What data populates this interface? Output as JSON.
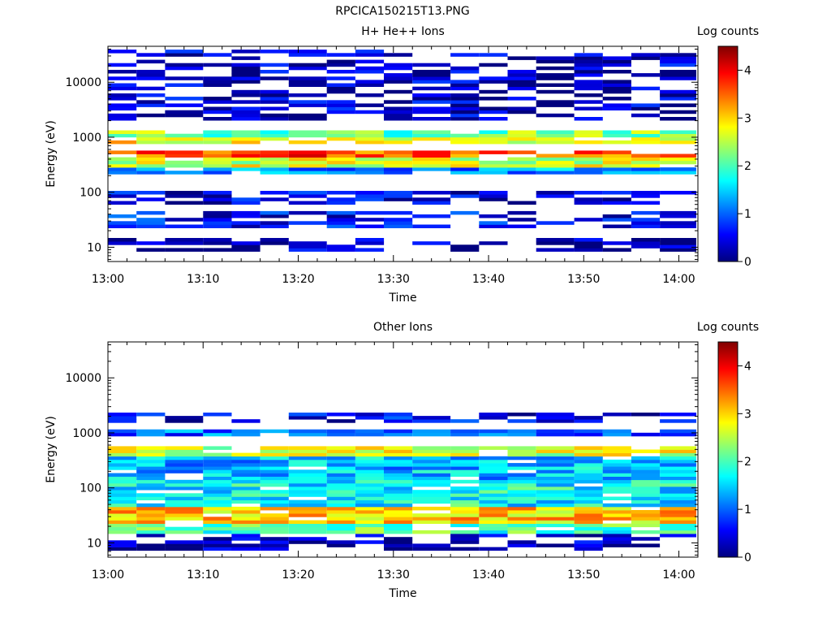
{
  "figure_title": "RPCICA150215T13.PNG",
  "colormap": [
    "#00007f",
    "#0000ff",
    "#007fff",
    "#00ffff",
    "#7fff7f",
    "#ffff00",
    "#ff7f00",
    "#ff0000",
    "#7f0000"
  ],
  "chart_data": [
    {
      "type": "heatmap",
      "title": "H+ He++ Ions",
      "xlabel": "Time",
      "ylabel": "Energy (eV)",
      "yscale": "log",
      "ylim": [
        5.5,
        45000
      ],
      "yticks": [
        10,
        100,
        1000,
        10000
      ],
      "ytick_labels": [
        "10",
        "100",
        "1000",
        "10000"
      ],
      "xlim": [
        "13:00",
        "14:02"
      ],
      "xticks": [
        "13:00",
        "13:10",
        "13:20",
        "13:30",
        "13:40",
        "13:50",
        "14:00"
      ],
      "time_bins": [
        "13:00",
        "13:03",
        "13:06",
        "13:10",
        "13:13",
        "13:16",
        "13:19",
        "13:23",
        "13:26",
        "13:29",
        "13:32",
        "13:36",
        "13:39",
        "13:42",
        "13:45",
        "13:49",
        "13:52",
        "13:55",
        "13:58"
      ],
      "colorbar": {
        "label": "Log counts",
        "range": [
          0,
          4.5
        ],
        "ticks": [
          0,
          1,
          2,
          3,
          4
        ],
        "tick_labels": [
          "0",
          "1",
          "2",
          "3",
          "4"
        ]
      },
      "legend": "right",
      "band_intensity": [
        {
          "energy_range": [
            9,
            15
          ],
          "value": 0.2
        },
        {
          "energy_range": [
            22,
            45
          ],
          "value": 0.6
        },
        {
          "energy_range": [
            60,
            100
          ],
          "value": 0.4
        },
        {
          "energy_range": [
            200,
            300
          ],
          "value": 1.2
        },
        {
          "energy_range": [
            300,
            450
          ],
          "value": 2.6
        },
        {
          "energy_range": [
            450,
            600
          ],
          "value": 3.6
        },
        {
          "energy_range": [
            800,
            1000
          ],
          "value": 2.8
        },
        {
          "energy_range": [
            1000,
            1300
          ],
          "value": 2.2
        },
        {
          "energy_range": [
            2000,
            40000
          ],
          "value": 0.3
        }
      ]
    },
    {
      "type": "heatmap",
      "title": "Other Ions",
      "xlabel": "Time",
      "ylabel": "Energy (eV)",
      "yscale": "log",
      "ylim": [
        5.5,
        45000
      ],
      "yticks": [
        10,
        100,
        1000,
        10000
      ],
      "ytick_labels": [
        "10",
        "100",
        "1000",
        "10000"
      ],
      "xlim": [
        "13:00",
        "14:02"
      ],
      "xticks": [
        "13:00",
        "13:10",
        "13:20",
        "13:30",
        "13:40",
        "13:50",
        "14:00"
      ],
      "time_bins": [
        "13:00",
        "13:03",
        "13:06",
        "13:10",
        "13:13",
        "13:16",
        "13:19",
        "13:23",
        "13:26",
        "13:29",
        "13:32",
        "13:36",
        "13:39",
        "13:42",
        "13:45",
        "13:49",
        "13:52",
        "13:55",
        "13:58"
      ],
      "colorbar": {
        "label": "Log counts",
        "range": [
          0,
          4.5
        ],
        "ticks": [
          0,
          1,
          2,
          3,
          4
        ],
        "tick_labels": [
          "0",
          "1",
          "2",
          "3",
          "4"
        ]
      },
      "legend": "right",
      "band_intensity": [
        {
          "energy_range": [
            7,
            15
          ],
          "value": 0.3
        },
        {
          "energy_range": [
            15,
            22
          ],
          "value": 2.0
        },
        {
          "energy_range": [
            22,
            45
          ],
          "value": 3.0
        },
        {
          "energy_range": [
            45,
            150
          ],
          "value": 1.7
        },
        {
          "energy_range": [
            150,
            350
          ],
          "value": 1.4
        },
        {
          "energy_range": [
            350,
            600
          ],
          "value": 2.6
        },
        {
          "energy_range": [
            900,
            1200
          ],
          "value": 1.0
        },
        {
          "energy_range": [
            1500,
            2500
          ],
          "value": 0.5
        }
      ]
    }
  ]
}
